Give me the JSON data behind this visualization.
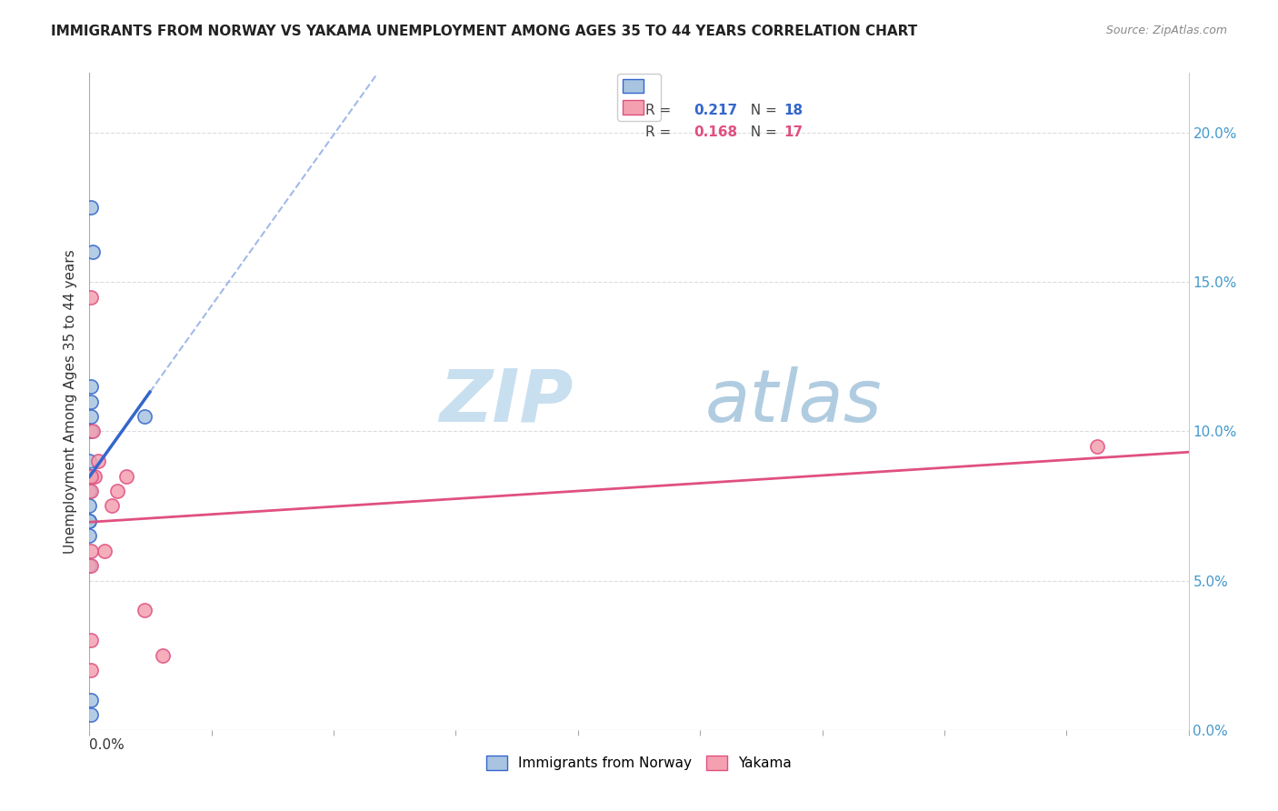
{
  "title": "IMMIGRANTS FROM NORWAY VS YAKAMA UNEMPLOYMENT AMONG AGES 35 TO 44 YEARS CORRELATION CHART",
  "source": "Source: ZipAtlas.com",
  "ylabel": "Unemployment Among Ages 35 to 44 years",
  "ylabel_right_ticks": [
    "0.0%",
    "5.0%",
    "10.0%",
    "15.0%",
    "20.0%"
  ],
  "legend1_R": "0.217",
  "legend1_N": "18",
  "legend2_R": "0.168",
  "legend2_N": "17",
  "legend1_label": "Immigrants from Norway",
  "legend2_label": "Yakama",
  "norway_color": "#a8c4e0",
  "yakama_color": "#f4a0b0",
  "norway_line_color": "#3366cc",
  "yakama_line_color": "#e05080",
  "norway_scatter_x": [
    0.001,
    0.002,
    0.001,
    0.001,
    0.001,
    0.001,
    0.0,
    0.0,
    0.0,
    0.0,
    0.0,
    0.0,
    0.0,
    0.0,
    0.0,
    0.03,
    0.001,
    0.001
  ],
  "norway_scatter_y": [
    0.175,
    0.16,
    0.115,
    0.11,
    0.105,
    0.1,
    0.09,
    0.085,
    0.085,
    0.08,
    0.075,
    0.07,
    0.07,
    0.065,
    0.055,
    0.105,
    0.01,
    0.005
  ],
  "yakama_scatter_x": [
    0.001,
    0.002,
    0.003,
    0.005,
    0.008,
    0.012,
    0.015,
    0.02,
    0.03,
    0.04,
    0.55,
    0.001,
    0.001,
    0.001,
    0.001,
    0.001,
    0.001
  ],
  "yakama_scatter_y": [
    0.145,
    0.1,
    0.085,
    0.09,
    0.06,
    0.075,
    0.08,
    0.085,
    0.04,
    0.025,
    0.095,
    0.085,
    0.08,
    0.06,
    0.055,
    0.03,
    0.02
  ],
  "xlim": [
    0.0,
    0.6
  ],
  "ylim": [
    0.0,
    0.22
  ],
  "background_color": "#ffffff",
  "watermark_zip": "ZIP",
  "watermark_atlas": "atlas",
  "marker_size": 120,
  "yticks_right_vals": [
    0.0,
    0.05,
    0.1,
    0.15,
    0.2
  ]
}
